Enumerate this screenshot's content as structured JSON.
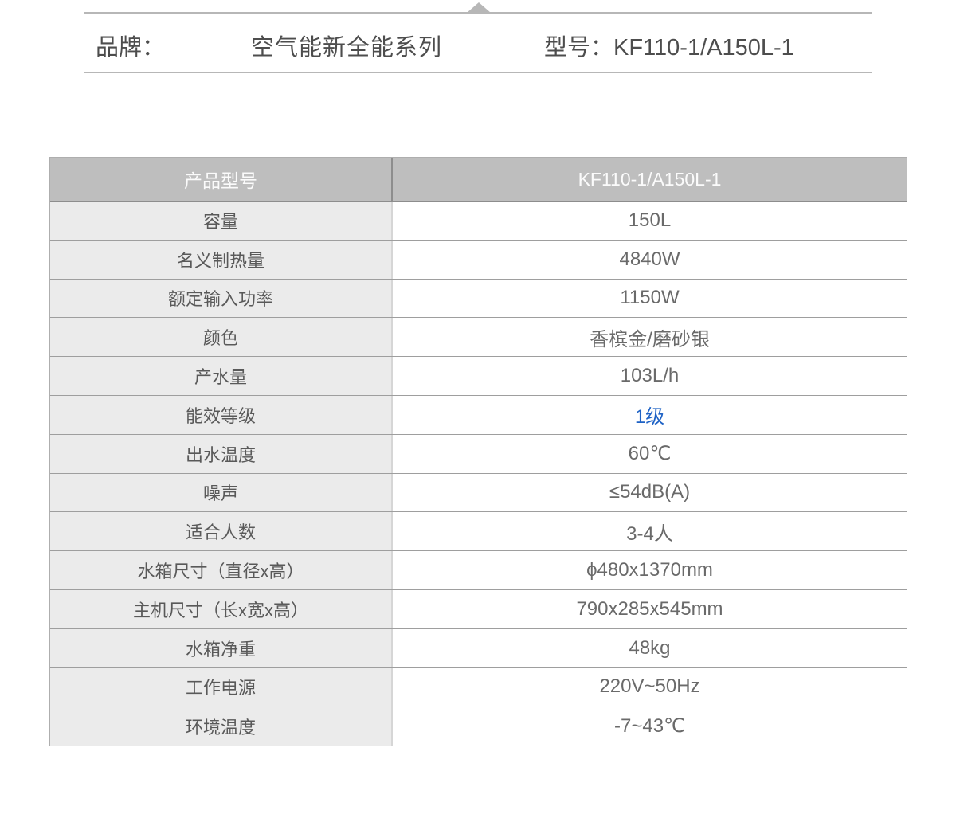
{
  "page_header": {
    "brand_label": "品牌：",
    "brand_value": "空气能新全能系列",
    "model_label": "型号：",
    "model_value": "KF110-1/A150L-1"
  },
  "spec_table": {
    "header": {
      "label": "产品型号",
      "value": "KF110-1/A150L-1"
    },
    "rows": [
      {
        "label": "容量",
        "value": "150L"
      },
      {
        "label": "名义制热量",
        "value": "4840W"
      },
      {
        "label": "额定输入功率",
        "value": "1150W"
      },
      {
        "label": "颜色",
        "value": "香槟金/磨砂银"
      },
      {
        "label": "产水量",
        "value": "103L/h"
      },
      {
        "label": "能效等级",
        "value": "1级",
        "value_color": "#1e62c5"
      },
      {
        "label": "出水温度",
        "value": "60℃"
      },
      {
        "label": "噪声",
        "value": "≤54dB(A)"
      },
      {
        "label": "适合人数",
        "value": "3-4人"
      },
      {
        "label": "水箱尺寸（直径x高）",
        "value": "ϕ480x1370mm"
      },
      {
        "label": "主机尺寸（长x宽x高）",
        "value": "790x285x545mm"
      },
      {
        "label": "水箱净重",
        "value": "48kg"
      },
      {
        "label": "工作电源",
        "value": "220V~50Hz"
      },
      {
        "label": "环境温度",
        "value": "-7~43℃"
      }
    ]
  },
  "icons": {
    "collapse_arrow": "triangle-up-icon"
  },
  "colors": {
    "energy_rating_blue": "#1e62c5",
    "table_header_bg": "#bebebe",
    "label_cell_bg": "#ebebeb",
    "divider_gray": "#b7b7b7"
  }
}
